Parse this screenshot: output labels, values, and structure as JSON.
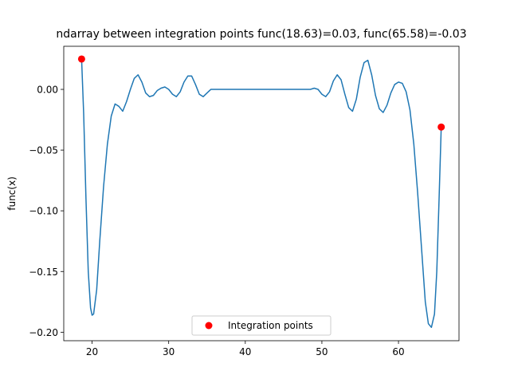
{
  "chart_data": {
    "type": "line",
    "title": "ndarray between integration points func(18.63)=0.03, func(65.58)=-0.03",
    "xlabel": "",
    "ylabel": "func(x)",
    "xlim": [
      16.3,
      67.9
    ],
    "ylim": [
      -0.207,
      0.0355
    ],
    "xticks": [
      20,
      30,
      40,
      50,
      60
    ],
    "yticks": [
      -0.2,
      -0.15,
      -0.1,
      -0.05,
      0.0
    ],
    "xtick_labels": [
      "20",
      "30",
      "40",
      "50",
      "60"
    ],
    "ytick_labels": [
      "−0.20",
      "−0.15",
      "−0.10",
      "−0.05",
      "0.00"
    ],
    "grid": false,
    "legend_position": "bottom-center",
    "series": [
      {
        "kind": "line",
        "color": "#1f77b4",
        "x": [
          18.63,
          18.9,
          19.2,
          19.5,
          19.8,
          20.0,
          20.2,
          20.6,
          21.0,
          21.5,
          22.0,
          22.5,
          23.0,
          23.5,
          24.0,
          24.5,
          25.0,
          25.5,
          26.0,
          26.5,
          27.0,
          27.5,
          28.0,
          28.5,
          29.0,
          29.5,
          30.0,
          30.5,
          31.0,
          31.5,
          32.0,
          32.5,
          33.0,
          33.5,
          34.0,
          34.5,
          35.0,
          35.5,
          36.0,
          36.5,
          37.0,
          38.0,
          40.0,
          42.0,
          44.0,
          46.0,
          47.0,
          48.0,
          48.5,
          49.0,
          49.5,
          50.0,
          50.5,
          51.0,
          51.5,
          52.0,
          52.5,
          53.0,
          53.5,
          54.0,
          54.5,
          55.0,
          55.5,
          56.0,
          56.5,
          57.0,
          57.5,
          58.0,
          58.5,
          59.0,
          59.5,
          60.0,
          60.5,
          61.0,
          61.5,
          62.0,
          62.5,
          63.0,
          63.5,
          63.9,
          64.3,
          64.7,
          65.0,
          65.3,
          65.58
        ],
        "y": [
          0.025,
          -0.02,
          -0.09,
          -0.15,
          -0.18,
          -0.186,
          -0.185,
          -0.165,
          -0.125,
          -0.08,
          -0.045,
          -0.022,
          -0.012,
          -0.014,
          -0.018,
          -0.01,
          0.0,
          0.009,
          0.012,
          0.006,
          -0.003,
          -0.006,
          -0.005,
          -0.001,
          0.001,
          0.002,
          0.0,
          -0.004,
          -0.006,
          -0.002,
          0.006,
          0.011,
          0.011,
          0.004,
          -0.004,
          -0.006,
          -0.003,
          0.0,
          0.0,
          0.0,
          0.0,
          0.0,
          0.0,
          0.0,
          0.0,
          0.0,
          0.0,
          0.0,
          0.0,
          0.001,
          0.0,
          -0.004,
          -0.006,
          -0.002,
          0.007,
          0.012,
          0.008,
          -0.004,
          -0.015,
          -0.018,
          -0.008,
          0.01,
          0.022,
          0.024,
          0.012,
          -0.005,
          -0.016,
          -0.019,
          -0.013,
          -0.003,
          0.004,
          0.006,
          0.005,
          -0.002,
          -0.017,
          -0.045,
          -0.085,
          -0.13,
          -0.175,
          -0.193,
          -0.196,
          -0.185,
          -0.15,
          -0.09,
          -0.031
        ]
      }
    ],
    "points": {
      "name": "Integration points",
      "color": "#ff0000",
      "x": [
        18.63,
        65.58
      ],
      "y": [
        0.025,
        -0.031
      ]
    }
  }
}
